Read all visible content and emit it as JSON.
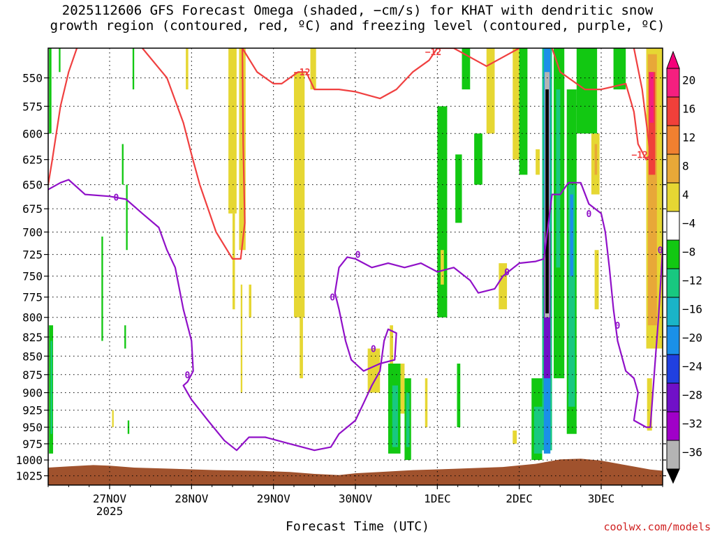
{
  "title_line1": "2025112606 GFS Forecast Omega (shaded, −cm/s) for KHAT with dendritic snow",
  "title_line2": "growth region (contoured, red, ºC) and freezing level (contoured, purple, ºC)",
  "credit": "coolwx.com/models",
  "chart_data": {
    "type": "heatmap",
    "title": "2025112606 GFS Forecast Omega (shaded, −cm/s) for KHAT with dendritic snow growth region (contoured, red, ºC) and freezing level (contoured, purple, ºC)",
    "xlabel": "Forecast Time (UTC)",
    "ylabel": "",
    "x_range_days_from_27NOV": [
      -0.75,
      6.75
    ],
    "y_range": [
      1040,
      525
    ],
    "y_scale": "log",
    "grid": true,
    "x_ticks": [
      {
        "label": "27NOV",
        "sublabel": "2025",
        "day": 0
      },
      {
        "label": "28NOV",
        "sublabel": "",
        "day": 1
      },
      {
        "label": "29NOV",
        "sublabel": "",
        "day": 2
      },
      {
        "label": "30NOV",
        "sublabel": "",
        "day": 3
      },
      {
        "label": "1DEC",
        "sublabel": "",
        "day": 4
      },
      {
        "label": "2DEC",
        "sublabel": "",
        "day": 5
      },
      {
        "label": "3DEC",
        "sublabel": "",
        "day": 6
      }
    ],
    "y_ticks": [
      550,
      575,
      600,
      625,
      650,
      675,
      700,
      725,
      750,
      775,
      800,
      825,
      850,
      875,
      900,
      925,
      950,
      975,
      1000,
      1025
    ],
    "colorbar": {
      "labels": [
        "20",
        "16",
        "12",
        "8",
        "4",
        "−4",
        "−8",
        "−12",
        "−16",
        "−20",
        "−24",
        "−28",
        "−32",
        "−36"
      ],
      "colors": [
        "#f51f7f",
        "#f0403a",
        "#f08030",
        "#e8a838",
        "#e6d733",
        "#ffffff",
        "#12c812",
        "#18c880",
        "#1ab4c8",
        "#1a90e8",
        "#2040e0",
        "#7010c8",
        "#a000c8",
        "#b4b4b4"
      ]
    },
    "contours": [
      {
        "level": "-12",
        "color": "#f04040",
        "label": "−12",
        "points": [
          [
            -0.4,
            525
          ],
          [
            -0.5,
            545
          ],
          [
            -0.6,
            575
          ],
          [
            -0.7,
            625
          ],
          [
            -0.75,
            650
          ],
          null,
          [
            0.4,
            525
          ],
          [
            0.7,
            550
          ],
          [
            0.9,
            590
          ],
          [
            1.0,
            620
          ],
          [
            1.1,
            650
          ],
          [
            1.3,
            700
          ],
          [
            1.5,
            730
          ],
          [
            1.6,
            730
          ],
          [
            1.65,
            690
          ],
          [
            1.63,
            610
          ],
          [
            1.62,
            525
          ],
          null,
          [
            1.62,
            525
          ],
          [
            1.8,
            545
          ],
          [
            2.0,
            555
          ],
          [
            2.1,
            555
          ],
          [
            2.3,
            545
          ],
          [
            2.4,
            545
          ],
          [
            2.5,
            560
          ],
          [
            2.8,
            560
          ],
          [
            3.0,
            562
          ],
          [
            3.3,
            568
          ],
          [
            3.5,
            560
          ],
          [
            3.7,
            545
          ],
          [
            3.9,
            535
          ],
          [
            4.0,
            525
          ],
          [
            4.2,
            525
          ],
          [
            4.6,
            540
          ],
          [
            5.0,
            525
          ],
          null,
          [
            5.4,
            525
          ],
          [
            5.5,
            545
          ],
          [
            5.8,
            560
          ],
          [
            6.0,
            560
          ],
          [
            6.3,
            555
          ],
          [
            6.4,
            580
          ],
          [
            6.45,
            610
          ],
          [
            6.55,
            625
          ],
          [
            6.6,
            620
          ],
          [
            6.5,
            560
          ],
          [
            6.4,
            525
          ]
        ]
      },
      {
        "level": "0",
        "color": "#9010c8",
        "label": "0",
        "points": [
          [
            -0.75,
            655
          ],
          [
            -0.6,
            648
          ],
          [
            -0.5,
            645
          ],
          [
            -0.3,
            660
          ],
          [
            0.0,
            662
          ],
          [
            0.2,
            665
          ],
          [
            0.4,
            680
          ],
          [
            0.6,
            695
          ],
          [
            0.7,
            720
          ],
          [
            0.8,
            740
          ],
          [
            0.9,
            790
          ],
          [
            1.0,
            830
          ],
          [
            1.02,
            870
          ],
          [
            0.95,
            885
          ],
          [
            0.9,
            890
          ],
          [
            1.0,
            910
          ],
          [
            1.2,
            940
          ],
          [
            1.4,
            970
          ],
          [
            1.55,
            985
          ],
          [
            1.7,
            965
          ],
          [
            1.9,
            965
          ],
          [
            2.2,
            975
          ],
          [
            2.5,
            985
          ],
          [
            2.7,
            980
          ],
          [
            2.8,
            960
          ],
          [
            3.0,
            940
          ],
          [
            3.1,
            915
          ],
          [
            3.2,
            890
          ],
          [
            3.3,
            870
          ],
          [
            3.35,
            830
          ],
          [
            3.4,
            815
          ],
          [
            3.5,
            820
          ],
          [
            3.48,
            855
          ],
          [
            3.3,
            860
          ],
          [
            3.1,
            870
          ],
          [
            2.95,
            855
          ],
          [
            2.88,
            830
          ],
          [
            2.8,
            790
          ],
          [
            2.75,
            770
          ],
          [
            2.8,
            740
          ],
          [
            2.9,
            728
          ],
          [
            3.0,
            730
          ],
          [
            3.2,
            740
          ],
          [
            3.4,
            735
          ],
          [
            3.6,
            740
          ],
          [
            3.8,
            735
          ],
          [
            4.0,
            745
          ],
          [
            4.2,
            740
          ],
          [
            4.4,
            755
          ],
          [
            4.5,
            770
          ],
          [
            4.7,
            765
          ],
          [
            4.8,
            750
          ],
          [
            5.0,
            735
          ],
          [
            5.2,
            733
          ],
          [
            5.3,
            730
          ],
          [
            5.4,
            660
          ],
          [
            5.5,
            660
          ],
          [
            5.6,
            648
          ],
          [
            5.75,
            648
          ],
          [
            5.85,
            670
          ],
          [
            6.0,
            680
          ],
          [
            6.05,
            700
          ],
          [
            6.1,
            740
          ],
          [
            6.15,
            790
          ],
          [
            6.2,
            830
          ],
          [
            6.3,
            870
          ],
          [
            6.4,
            880
          ],
          [
            6.45,
            900
          ],
          [
            6.4,
            940
          ],
          [
            6.55,
            950
          ],
          [
            6.6,
            950
          ],
          [
            6.65,
            870
          ],
          [
            6.7,
            800
          ],
          [
            6.75,
            720
          ]
        ]
      }
    ],
    "contour_labels": [
      {
        "text": "−12",
        "color": "#f04040",
        "x": 2.35,
        "y": 545
      },
      {
        "text": "−12",
        "color": "#f04040",
        "x": 3.95,
        "y": 528
      },
      {
        "text": "−12",
        "color": "#f04040",
        "x": 6.47,
        "y": 620
      },
      {
        "text": "0",
        "color": "#9010c8",
        "x": 0.08,
        "y": 663
      },
      {
        "text": "0",
        "color": "#9010c8",
        "x": 0.95,
        "y": 875
      },
      {
        "text": "0",
        "color": "#9010c8",
        "x": 2.72,
        "y": 775
      },
      {
        "text": "0",
        "color": "#9010c8",
        "x": 3.03,
        "y": 725
      },
      {
        "text": "0",
        "color": "#9010c8",
        "x": 3.22,
        "y": 840
      },
      {
        "text": "0",
        "color": "#9010c8",
        "x": 4.85,
        "y": 745
      },
      {
        "text": "0",
        "color": "#9010c8",
        "x": 5.85,
        "y": 680
      },
      {
        "text": "0",
        "color": "#9010c8",
        "x": 6.2,
        "y": 810
      },
      {
        "text": "0",
        "color": "#9010c8",
        "x": 6.72,
        "y": 720
      }
    ],
    "cells": [
      {
        "x0": -0.74,
        "x1": -0.71,
        "y0": 525,
        "y1": 600,
        "c": "#12c812"
      },
      {
        "x0": -0.74,
        "x1": -0.69,
        "y0": 810,
        "y1": 990,
        "c": "#12c812"
      },
      {
        "x0": -0.72,
        "x1": -0.7,
        "y0": 830,
        "y1": 960,
        "c": "#18c880"
      },
      {
        "x0": -0.62,
        "x1": -0.6,
        "y0": 525,
        "y1": 545,
        "c": "#12c812"
      },
      {
        "x0": -0.1,
        "x1": -0.08,
        "y0": 705,
        "y1": 830,
        "c": "#12c812"
      },
      {
        "x0": 0.15,
        "x1": 0.17,
        "y0": 610,
        "y1": 650,
        "c": "#12c812"
      },
      {
        "x0": 0.18,
        "x1": 0.2,
        "y0": 810,
        "y1": 840,
        "c": "#12c812"
      },
      {
        "x0": 0.2,
        "x1": 0.22,
        "y0": 650,
        "y1": 720,
        "c": "#12c812"
      },
      {
        "x0": 0.28,
        "x1": 0.3,
        "y0": 525,
        "y1": 560,
        "c": "#12c812"
      },
      {
        "x0": 0.22,
        "x1": 0.24,
        "y0": 940,
        "y1": 960,
        "c": "#12c812"
      },
      {
        "x0": 0.03,
        "x1": 0.05,
        "y0": 925,
        "y1": 950,
        "c": "#e6d733"
      },
      {
        "x0": 0.93,
        "x1": 0.96,
        "y0": 525,
        "y1": 560,
        "c": "#e6d733"
      },
      {
        "x0": 1.45,
        "x1": 1.55,
        "y0": 525,
        "y1": 680,
        "c": "#e6d733"
      },
      {
        "x0": 1.5,
        "x1": 1.53,
        "y0": 680,
        "y1": 790,
        "c": "#e6d733"
      },
      {
        "x0": 1.58,
        "x1": 1.66,
        "y0": 525,
        "y1": 720,
        "c": "#e6d733"
      },
      {
        "x0": 1.6,
        "x1": 1.62,
        "y0": 760,
        "y1": 900,
        "c": "#e6d733"
      },
      {
        "x0": 1.7,
        "x1": 1.73,
        "y0": 760,
        "y1": 800,
        "c": "#e6d733"
      },
      {
        "x0": 2.25,
        "x1": 2.38,
        "y0": 545,
        "y1": 800,
        "c": "#e6d733"
      },
      {
        "x0": 2.32,
        "x1": 2.36,
        "y0": 800,
        "y1": 880,
        "c": "#e6d733"
      },
      {
        "x0": 2.45,
        "x1": 2.52,
        "y0": 525,
        "y1": 560,
        "c": "#e6d733"
      },
      {
        "x0": 3.15,
        "x1": 3.3,
        "y0": 840,
        "y1": 900,
        "c": "#e6d733"
      },
      {
        "x0": 3.42,
        "x1": 3.46,
        "y0": 810,
        "y1": 880,
        "c": "#e6d733"
      },
      {
        "x0": 3.55,
        "x1": 3.6,
        "y0": 860,
        "y1": 930,
        "c": "#e6d733"
      },
      {
        "x0": 3.85,
        "x1": 3.88,
        "y0": 880,
        "y1": 950,
        "c": "#e6d733"
      },
      {
        "x0": 4.0,
        "x1": 4.12,
        "y0": 575,
        "y1": 800,
        "c": "#12c812"
      },
      {
        "x0": 4.04,
        "x1": 4.08,
        "y0": 720,
        "y1": 760,
        "c": "#e6d733"
      },
      {
        "x0": 4.22,
        "x1": 4.3,
        "y0": 620,
        "y1": 690,
        "c": "#12c812"
      },
      {
        "x0": 4.3,
        "x1": 4.4,
        "y0": 525,
        "y1": 560,
        "c": "#12c812"
      },
      {
        "x0": 4.45,
        "x1": 4.55,
        "y0": 600,
        "y1": 650,
        "c": "#12c812"
      },
      {
        "x0": 3.4,
        "x1": 3.55,
        "y0": 860,
        "y1": 990,
        "c": "#12c812"
      },
      {
        "x0": 3.45,
        "x1": 3.52,
        "y0": 890,
        "y1": 980,
        "c": "#18c880"
      },
      {
        "x0": 3.6,
        "x1": 3.68,
        "y0": 880,
        "y1": 1000,
        "c": "#12c812"
      },
      {
        "x0": 3.62,
        "x1": 3.66,
        "y0": 900,
        "y1": 980,
        "c": "#18c880"
      },
      {
        "x0": 4.24,
        "x1": 4.28,
        "y0": 860,
        "y1": 950,
        "c": "#12c812"
      },
      {
        "x0": 4.6,
        "x1": 4.7,
        "y0": 525,
        "y1": 600,
        "c": "#e6d733"
      },
      {
        "x0": 4.75,
        "x1": 4.85,
        "y0": 735,
        "y1": 790,
        "c": "#e6d733"
      },
      {
        "x0": 4.92,
        "x1": 5.0,
        "y0": 525,
        "y1": 625,
        "c": "#e6d733"
      },
      {
        "x0": 5.0,
        "x1": 5.1,
        "y0": 525,
        "y1": 640,
        "c": "#12c812"
      },
      {
        "x0": 4.92,
        "x1": 4.97,
        "y0": 955,
        "y1": 975,
        "c": "#e6d733"
      },
      {
        "x0": 5.15,
        "x1": 5.28,
        "y0": 880,
        "y1": 1000,
        "c": "#12c812"
      },
      {
        "x0": 5.18,
        "x1": 5.28,
        "y0": 920,
        "y1": 990,
        "c": "#18c880"
      },
      {
        "x0": 5.2,
        "x1": 5.25,
        "y0": 615,
        "y1": 640,
        "c": "#e6d733"
      },
      {
        "x0": 5.28,
        "x1": 5.4,
        "y0": 525,
        "y1": 985,
        "c": "#18c880"
      },
      {
        "x0": 5.3,
        "x1": 5.38,
        "y0": 525,
        "y1": 700,
        "c": "#1a90e8"
      },
      {
        "x0": 5.3,
        "x1": 5.38,
        "y0": 700,
        "y1": 900,
        "c": "#7010c8"
      },
      {
        "x0": 5.31,
        "x1": 5.37,
        "y0": 545,
        "y1": 800,
        "c": "#b4b4b4"
      },
      {
        "x0": 5.32,
        "x1": 5.36,
        "y0": 560,
        "y1": 795,
        "c": "#000000"
      },
      {
        "x0": 5.3,
        "x1": 5.38,
        "y0": 880,
        "y1": 990,
        "c": "#1a90e8"
      },
      {
        "x0": 5.42,
        "x1": 5.55,
        "y0": 525,
        "y1": 880,
        "c": "#12c812"
      },
      {
        "x0": 5.45,
        "x1": 5.5,
        "y0": 560,
        "y1": 740,
        "c": "#18c880"
      },
      {
        "x0": 5.58,
        "x1": 5.7,
        "y0": 560,
        "y1": 960,
        "c": "#12c812"
      },
      {
        "x0": 5.6,
        "x1": 5.68,
        "y0": 650,
        "y1": 920,
        "c": "#18c880"
      },
      {
        "x0": 5.62,
        "x1": 5.66,
        "y0": 660,
        "y1": 750,
        "c": "#1a90e8"
      },
      {
        "x0": 5.7,
        "x1": 5.95,
        "y0": 525,
        "y1": 600,
        "c": "#12c812"
      },
      {
        "x0": 5.88,
        "x1": 5.98,
        "y0": 600,
        "y1": 660,
        "c": "#e6d733"
      },
      {
        "x0": 5.92,
        "x1": 5.95,
        "y0": 610,
        "y1": 640,
        "c": "#e8a838"
      },
      {
        "x0": 5.92,
        "x1": 5.97,
        "y0": 720,
        "y1": 790,
        "c": "#e6d733"
      },
      {
        "x0": 6.15,
        "x1": 6.3,
        "y0": 525,
        "y1": 560,
        "c": "#12c812"
      },
      {
        "x0": 6.55,
        "x1": 6.75,
        "y0": 525,
        "y1": 840,
        "c": "#e6d733"
      },
      {
        "x0": 6.57,
        "x1": 6.68,
        "y0": 530,
        "y1": 810,
        "c": "#e8a838"
      },
      {
        "x0": 6.58,
        "x1": 6.66,
        "y0": 545,
        "y1": 640,
        "c": "#f0403a"
      },
      {
        "x0": 6.59,
        "x1": 6.64,
        "y0": 545,
        "y1": 590,
        "c": "#f51f7f"
      },
      {
        "x0": 6.56,
        "x1": 6.62,
        "y0": 880,
        "y1": 955,
        "c": "#e6d733"
      }
    ],
    "terrain": {
      "color": "#a0522d",
      "surface_pressure": [
        [
          -0.75,
          1012
        ],
        [
          -0.5,
          1010
        ],
        [
          -0.2,
          1008
        ],
        [
          0.0,
          1009
        ],
        [
          0.3,
          1012
        ],
        [
          0.8,
          1014
        ],
        [
          1.3,
          1016
        ],
        [
          1.8,
          1017
        ],
        [
          2.2,
          1019
        ],
        [
          2.5,
          1022
        ],
        [
          2.8,
          1024
        ],
        [
          3.0,
          1021
        ],
        [
          3.3,
          1019
        ],
        [
          3.7,
          1016
        ],
        [
          4.2,
          1014
        ],
        [
          4.8,
          1011
        ],
        [
          5.2,
          1006
        ],
        [
          5.5,
          999
        ],
        [
          5.75,
          998
        ],
        [
          6.0,
          1001
        ],
        [
          6.3,
          1008
        ],
        [
          6.6,
          1015
        ],
        [
          6.75,
          1017
        ]
      ]
    }
  }
}
